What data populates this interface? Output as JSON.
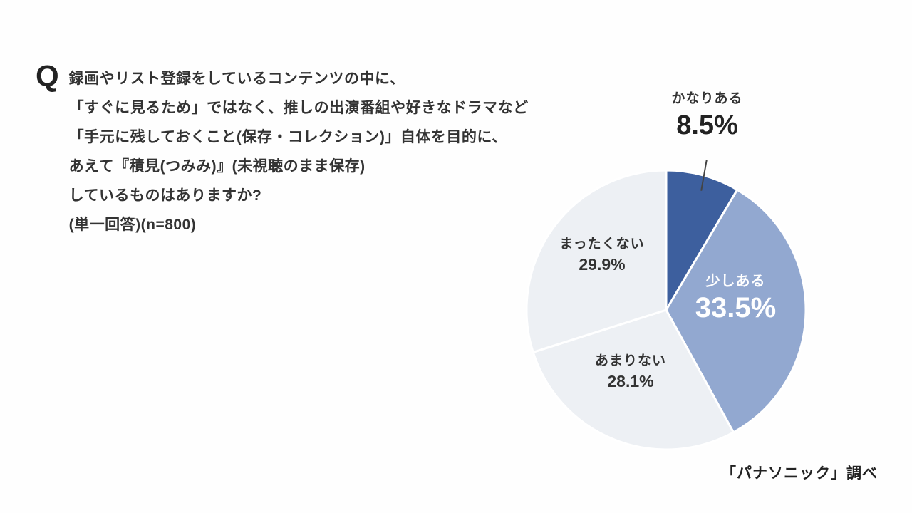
{
  "question": {
    "prefix": "Q",
    "lines": [
      "録画やリスト登録をしているコンテンツの中に、",
      "「すぐに見るため」ではなく、推しの出演番組や好きなドラマなど",
      "「手元に残しておくこと(保存・コレクション)」自体を目的に、",
      "あえて『積見(つみみ)』(未視聴のまま保存)",
      "しているものはありますか?",
      "(単一回答)(n=800)"
    ]
  },
  "source": "「パナソニック」調べ",
  "chart_data": {
    "type": "pie",
    "unit": "%",
    "n": 800,
    "start_angle_deg": -90,
    "direction": "clockwise",
    "stroke_color": "#ffffff",
    "slices": [
      {
        "label": "かなりある",
        "value": 8.5,
        "display": "8.5%",
        "color": "#3d5f9e",
        "text_color": "#222222",
        "label_position": "outside-top"
      },
      {
        "label": "少しある",
        "value": 33.5,
        "display": "33.5%",
        "color": "#92a8d0",
        "text_color": "#ffffff",
        "label_position": "inside-right"
      },
      {
        "label": "あまりない",
        "value": 28.1,
        "display": "28.1%",
        "color": "#edf0f4",
        "text_color": "#333333",
        "label_position": "inside-bottom"
      },
      {
        "label": "まったくない",
        "value": 29.9,
        "display": "29.9%",
        "color": "#edf0f4",
        "text_color": "#333333",
        "label_position": "inside-left"
      }
    ]
  }
}
